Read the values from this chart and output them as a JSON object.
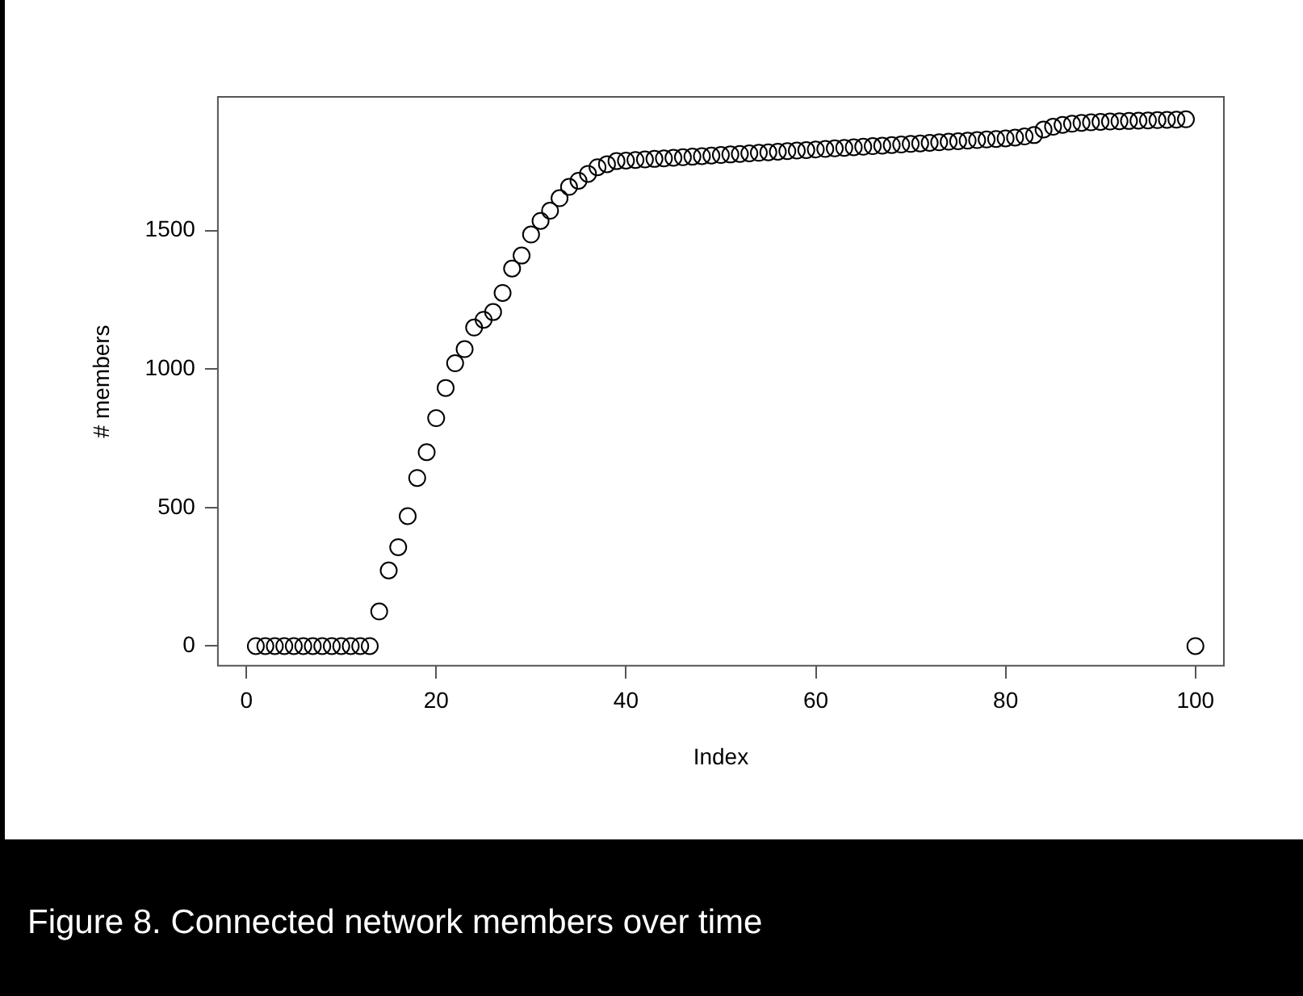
{
  "chart_data": {
    "type": "scatter",
    "xlabel": "Index",
    "ylabel": "# members",
    "annotations": [
      "Figure 8. Connected network members over time"
    ],
    "x": [
      1,
      2,
      3,
      4,
      5,
      6,
      7,
      8,
      9,
      10,
      11,
      12,
      13,
      14,
      15,
      16,
      17,
      18,
      19,
      20,
      21,
      22,
      23,
      24,
      25,
      26,
      27,
      28,
      29,
      30,
      31,
      32,
      33,
      34,
      35,
      36,
      37,
      38,
      39,
      40,
      41,
      42,
      43,
      44,
      45,
      46,
      47,
      48,
      49,
      50,
      51,
      52,
      53,
      54,
      55,
      56,
      57,
      58,
      59,
      60,
      61,
      62,
      63,
      64,
      65,
      66,
      67,
      68,
      69,
      70,
      71,
      72,
      73,
      74,
      75,
      76,
      77,
      78,
      79,
      80,
      81,
      82,
      83,
      84,
      85,
      86,
      87,
      88,
      89,
      90,
      91,
      92,
      93,
      94,
      95,
      96,
      97,
      98,
      99,
      100
    ],
    "series": [
      {
        "color": "#000000",
        "values": [
          0,
          0,
          0,
          0,
          0,
          0,
          0,
          0,
          0,
          0,
          0,
          0,
          0,
          125,
          273,
          357,
          469,
          607,
          700,
          823,
          932,
          1021,
          1072,
          1150,
          1178,
          1206,
          1275,
          1363,
          1410,
          1486,
          1535,
          1572,
          1617,
          1658,
          1680,
          1705,
          1729,
          1740,
          1751,
          1753,
          1755,
          1757,
          1759,
          1761,
          1763,
          1765,
          1767,
          1769,
          1771,
          1773,
          1775,
          1777,
          1779,
          1781,
          1783,
          1785,
          1787,
          1789,
          1791,
          1793,
          1795,
          1797,
          1799,
          1801,
          1803,
          1805,
          1807,
          1809,
          1811,
          1813,
          1815,
          1817,
          1819,
          1821,
          1823,
          1825,
          1827,
          1829,
          1831,
          1833,
          1836,
          1840,
          1845,
          1865,
          1875,
          1882,
          1886,
          1889,
          1891,
          1893,
          1894,
          1895,
          1896,
          1897,
          1898,
          1899,
          1900,
          1901,
          1902,
          0
        ]
      }
    ],
    "xlim": [
      -3,
      103
    ],
    "ylim": [
      -71,
      1983
    ],
    "xticks": [
      0,
      20,
      40,
      60,
      80,
      100
    ],
    "yticks": [
      0,
      500,
      1000,
      1500
    ],
    "marker": "circle",
    "grid": false
  }
}
